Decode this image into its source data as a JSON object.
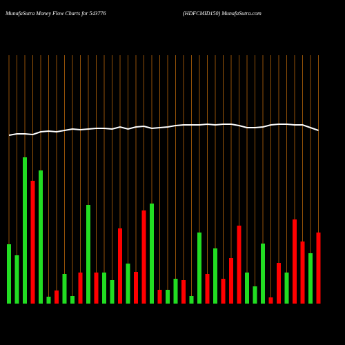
{
  "chart_data": {
    "type": "bar",
    "title": "MunafaSutra  Money Flow  Charts for 543776",
    "subtitle": "(HDFCMID150) MunafaSutra.com",
    "categories": [
      null,
      null,
      null,
      null,
      null,
      null,
      null,
      null,
      null,
      null,
      null,
      null,
      null,
      null,
      null,
      null,
      null,
      null,
      null,
      null,
      null,
      null,
      null,
      null,
      null,
      null,
      null,
      null,
      null,
      null,
      null,
      null,
      null,
      null,
      null,
      null,
      null,
      null,
      null,
      null
    ],
    "values": [
      86,
      70,
      212,
      178,
      193,
      10,
      19,
      43,
      11,
      45,
      143,
      45,
      45,
      34,
      109,
      58,
      46,
      135,
      145,
      20,
      20,
      36,
      34,
      11,
      103,
      43,
      80,
      36,
      66,
      113,
      45,
      25,
      87,
      9,
      59,
      45,
      122,
      90,
      73,
      103
    ],
    "colors": [
      "#22dd22",
      "#22dd22",
      "#22dd22",
      "#ff0000",
      "#22dd22",
      "#22dd22",
      "#ff0000",
      "#22dd22",
      "#22dd22",
      "#ff0000",
      "#22dd22",
      "#ff0000",
      "#22dd22",
      "#22dd22",
      "#ff0000",
      "#22dd22",
      "#ff0000",
      "#ff0000",
      "#22dd22",
      "#ff0000",
      "#22dd22",
      "#22dd22",
      "#ff0000",
      "#22dd22",
      "#22dd22",
      "#ff0000",
      "#22dd22",
      "#ff0000",
      "#ff0000",
      "#ff0000",
      "#22dd22",
      "#22dd22",
      "#22dd22",
      "#ff0000",
      "#ff0000",
      "#22dd22",
      "#ff0000",
      "#ff0000",
      "#22dd22",
      "#ff0000"
    ],
    "line": {
      "color": "#ffffff",
      "values": [
        244,
        246,
        246,
        245,
        249,
        250,
        249,
        251,
        253,
        252,
        253,
        254,
        254,
        253,
        256,
        253,
        256,
        257,
        254,
        255,
        256,
        258,
        259,
        259,
        259,
        260,
        259,
        260,
        260,
        258,
        255,
        255,
        256,
        259,
        260,
        260,
        259,
        259,
        255,
        251
      ]
    },
    "ylim": [
      0,
      360
    ]
  }
}
